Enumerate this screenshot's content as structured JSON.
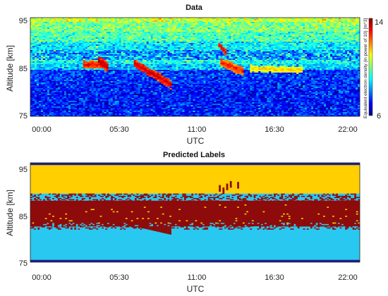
{
  "chart_data": [
    {
      "type": "heatmap",
      "title": "Data",
      "xlabel": "UTC",
      "ylabel": "Altitude [km]",
      "x_ticks": [
        "00:00",
        "05:30",
        "11:00",
        "16:30",
        "22:00"
      ],
      "y_ticks": [
        "75",
        "85",
        "95"
      ],
      "xlim_hours": [
        0,
        22.5
      ],
      "ylim_km": [
        75,
        96
      ],
      "colorbar": {
        "label": "Equivalent electron density (in power of 10) [m^3]",
        "min_label": "6",
        "max_label": "14",
        "range": [
          6,
          14
        ],
        "colormap": "jet"
      },
      "background_layers": [
        {
          "alt_from": 95,
          "alt_to": 96,
          "value": 10.6
        },
        {
          "alt_from": 93,
          "alt_to": 95,
          "value": 10.0
        },
        {
          "alt_from": 91,
          "alt_to": 93,
          "value": 9.6
        },
        {
          "alt_from": 89,
          "alt_to": 91,
          "value": 8.9
        },
        {
          "alt_from": 87,
          "alt_to": 89,
          "value": 8.0
        },
        {
          "alt_from": 86,
          "alt_to": 87,
          "value": 9.1
        },
        {
          "alt_from": 85,
          "alt_to": 86,
          "value": 8.6
        },
        {
          "alt_from": 82,
          "alt_to": 85,
          "value": 7.4
        },
        {
          "alt_from": 75,
          "alt_to": 82,
          "value": 7.2
        }
      ],
      "features": [
        {
          "name": "sporadic-layer-1",
          "t_start": 3.6,
          "t_end": 5.2,
          "alt_start": 86.0,
          "alt_end": 86.0,
          "thickness_km": 1.6,
          "value": 13.0
        },
        {
          "name": "sporadic-layer-2",
          "t_start": 4.6,
          "t_end": 5.4,
          "alt_start": 87.0,
          "alt_end": 85.0,
          "thickness_km": 2.0,
          "value": 13.6
        },
        {
          "name": "sporadic-layer-3",
          "t_start": 7.0,
          "t_end": 9.6,
          "alt_start": 86.5,
          "alt_end": 81.8,
          "thickness_km": 1.8,
          "value": 13.4
        },
        {
          "name": "sporadic-layer-4",
          "t_start": 12.8,
          "t_end": 13.4,
          "alt_start": 90.5,
          "alt_end": 88.5,
          "thickness_km": 1.2,
          "value": 13.3
        },
        {
          "name": "sporadic-layer-5",
          "t_start": 13.0,
          "t_end": 14.6,
          "alt_start": 86.5,
          "alt_end": 84.5,
          "thickness_km": 1.8,
          "value": 12.8
        },
        {
          "name": "sporadic-layer-6",
          "t_start": 15.0,
          "t_end": 18.6,
          "alt_start": 85.2,
          "alt_end": 84.8,
          "thickness_km": 1.4,
          "value": 11.4
        }
      ]
    },
    {
      "type": "heatmap",
      "title": "Predicted Labels",
      "xlabel": "UTC",
      "ylabel": "Altitude [km]",
      "x_ticks": [
        "00:00",
        "05:30",
        "11:00",
        "16:30",
        "22:00"
      ],
      "y_ticks": [
        "75",
        "85",
        "95"
      ],
      "xlim_hours": [
        0,
        22.5
      ],
      "ylim_km": [
        75,
        96
      ],
      "class_colors": {
        "class_0": "#1a1f8c",
        "class_1": "#29c8f0",
        "class_2": "#8e0b0b",
        "class_3": "#ffcf00"
      },
      "bands": [
        {
          "alt_from": 95.5,
          "alt_to": 96.0,
          "class": "class_0"
        },
        {
          "alt_from": 89.5,
          "alt_to": 95.5,
          "class": "class_3"
        },
        {
          "alt_from": 88.0,
          "alt_to": 89.5,
          "class": "class_1"
        },
        {
          "alt_from": 82.5,
          "alt_to": 88.0,
          "class": "class_2"
        },
        {
          "alt_from": 75.5,
          "alt_to": 82.5,
          "class": "class_1"
        },
        {
          "alt_from": 75.0,
          "alt_to": 75.5,
          "class": "class_0"
        }
      ],
      "features": [
        {
          "name": "dip-1",
          "t_start": 7.2,
          "t_end": 9.6,
          "alt_start": 82.5,
          "alt_end": 80.8,
          "class": "class_2"
        },
        {
          "name": "blob-1",
          "t_start": 12.9,
          "t_end": 14.6,
          "alt_center": 91.0,
          "class": "class_2"
        }
      ]
    }
  ]
}
